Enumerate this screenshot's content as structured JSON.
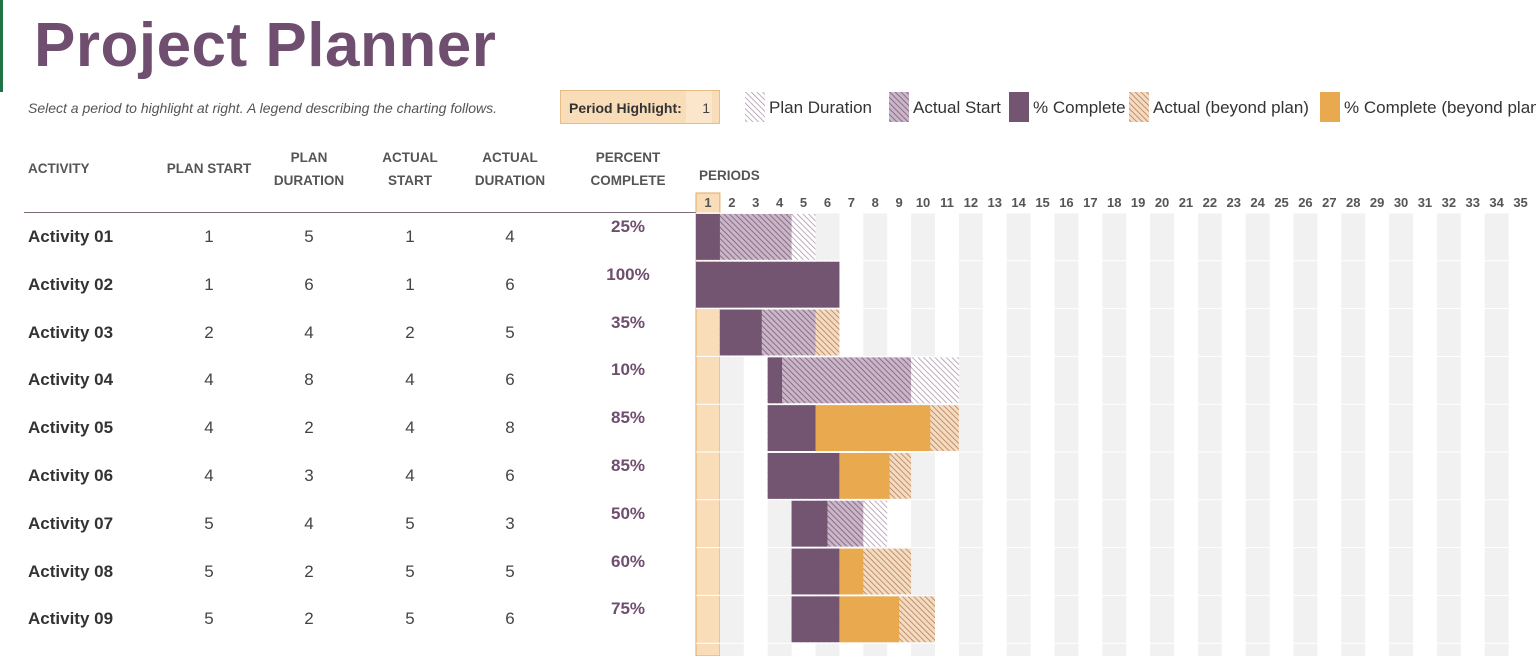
{
  "title": "Project Planner",
  "instruction": "Select a period to highlight at right.  A legend describing the charting follows.",
  "period_highlight": {
    "label": "Period Highlight:",
    "value": "1"
  },
  "legend": [
    {
      "name": "plan-duration",
      "label": "Plan Duration"
    },
    {
      "name": "actual-start",
      "label": "Actual Start"
    },
    {
      "name": "percent-complete",
      "label": "% Complete"
    },
    {
      "name": "actual-beyond-plan",
      "label": "Actual (beyond plan)"
    },
    {
      "name": "percent-complete-beyond-plan",
      "label": "% Complete (beyond plan)"
    }
  ],
  "columns": {
    "activity": "ACTIVITY",
    "plan_start": "PLAN START",
    "plan_duration": [
      "PLAN",
      "DURATION"
    ],
    "actual_start": [
      "ACTUAL",
      "START"
    ],
    "actual_duration": [
      "ACTUAL",
      "DURATION"
    ],
    "percent_complete": [
      "PERCENT",
      "COMPLETE"
    ],
    "periods": "PERIODS"
  },
  "period_numbers": [
    "1",
    "2",
    "3",
    "4",
    "5",
    "6",
    "7",
    "8",
    "9",
    "10",
    "11",
    "12",
    "13",
    "14",
    "15",
    "16",
    "17",
    "18",
    "19",
    "20",
    "21",
    "22",
    "23",
    "24",
    "25",
    "26",
    "27",
    "28",
    "29",
    "30",
    "31",
    "32",
    "33",
    "34",
    "35"
  ],
  "activities": [
    {
      "name": "Activity 01",
      "plan_start": "1",
      "plan_duration": "5",
      "actual_start": "1",
      "actual_duration": "4",
      "percent": "25%"
    },
    {
      "name": "Activity 02",
      "plan_start": "1",
      "plan_duration": "6",
      "actual_start": "1",
      "actual_duration": "6",
      "percent": "100%"
    },
    {
      "name": "Activity 03",
      "plan_start": "2",
      "plan_duration": "4",
      "actual_start": "2",
      "actual_duration": "5",
      "percent": "35%"
    },
    {
      "name": "Activity 04",
      "plan_start": "4",
      "plan_duration": "8",
      "actual_start": "4",
      "actual_duration": "6",
      "percent": "10%"
    },
    {
      "name": "Activity 05",
      "plan_start": "4",
      "plan_duration": "2",
      "actual_start": "4",
      "actual_duration": "8",
      "percent": "85%"
    },
    {
      "name": "Activity 06",
      "plan_start": "4",
      "plan_duration": "3",
      "actual_start": "4",
      "actual_duration": "6",
      "percent": "85%"
    },
    {
      "name": "Activity 07",
      "plan_start": "5",
      "plan_duration": "4",
      "actual_start": "5",
      "actual_duration": "3",
      "percent": "50%"
    },
    {
      "name": "Activity 08",
      "plan_start": "5",
      "plan_duration": "2",
      "actual_start": "5",
      "actual_duration": "5",
      "percent": "60%"
    },
    {
      "name": "Activity 09",
      "plan_start": "5",
      "plan_duration": "2",
      "actual_start": "5",
      "actual_duration": "6",
      "percent": "75%"
    }
  ],
  "colors": {
    "title": "#6f4e6f",
    "plum": "#735471",
    "plum_hatch": "#7d5a7b",
    "orange": "#e8a94f",
    "brown_hatch": "#b4784b",
    "highlight": "#f9ddb8",
    "grid_band": "#f1f1f1"
  }
}
